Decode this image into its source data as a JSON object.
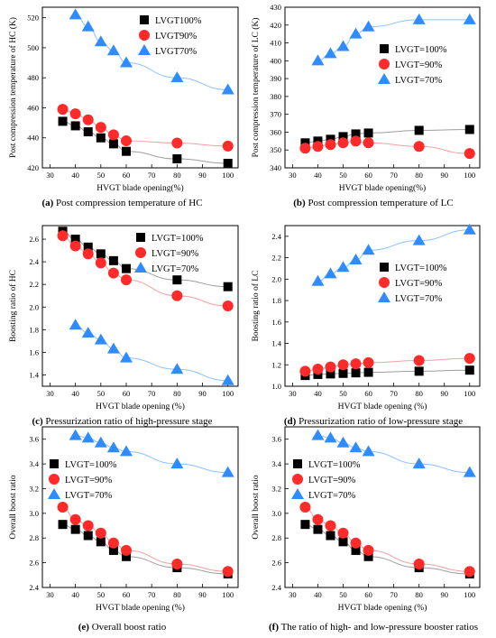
{
  "colors": {
    "LVGT100": "#000000",
    "LVGT90": "#ff2a2a",
    "LVGT70": "#2f8cff",
    "line100": "#9e9e9e",
    "line90": "#f2a2a2",
    "line70": "#8cc2ff"
  },
  "chart_data": [
    {
      "id": "a",
      "type": "scatter",
      "caption_label": "(a)",
      "caption_text": " Post compression temperature of HC",
      "xlabel": "HVGT blade opening(%)",
      "ylabel": "Post compression temperature of HC (K)",
      "xlim": [
        27,
        104
      ],
      "ylim": [
        420,
        527
      ],
      "xticks": [
        30,
        40,
        50,
        60,
        70,
        80,
        90,
        100
      ],
      "yticks": [
        420,
        440,
        460,
        480,
        500,
        520
      ],
      "legend_position": "top-right",
      "series": [
        {
          "name": "LVGT100%",
          "color_key": "LVGT100",
          "line_key": "line100",
          "marker": "square",
          "x": [
            35,
            40,
            45,
            50,
            55,
            60,
            80,
            100
          ],
          "y": [
            451,
            448,
            444,
            440,
            436,
            431,
            426,
            423
          ]
        },
        {
          "name": "LVGT90%",
          "color_key": "LVGT90",
          "line_key": "line90",
          "marker": "circle",
          "x": [
            35,
            40,
            45,
            50,
            55,
            60,
            80,
            100
          ],
          "y": [
            459,
            456,
            452,
            447,
            442,
            438,
            436.5,
            434.5
          ]
        },
        {
          "name": "LVGT70%",
          "color_key": "LVGT70",
          "line_key": "line70",
          "marker": "triangle",
          "x": [
            40,
            45,
            50,
            55,
            60,
            80,
            100
          ],
          "y": [
            522,
            514,
            504,
            498,
            490,
            480,
            472
          ]
        }
      ]
    },
    {
      "id": "b",
      "type": "scatter",
      "caption_label": "(b)",
      "caption_text": " Post compression temperature of LC",
      "xlabel": "HVGT blade opening(%)",
      "ylabel": "Post compression temperature of LC (K)",
      "xlim": [
        27,
        104
      ],
      "ylim": [
        340,
        430
      ],
      "xticks": [
        30,
        40,
        50,
        60,
        70,
        80,
        90,
        100
      ],
      "yticks": [
        340,
        350,
        360,
        370,
        380,
        390,
        400,
        410,
        420,
        430
      ],
      "legend_position": "right",
      "series": [
        {
          "name": "LVGT=100%",
          "color_key": "LVGT100",
          "line_key": "line100",
          "marker": "square",
          "x": [
            35,
            40,
            45,
            50,
            55,
            60,
            80,
            100
          ],
          "y": [
            354,
            355,
            356,
            357.5,
            359,
            359.5,
            361,
            361.5
          ]
        },
        {
          "name": "LVGT=90%",
          "color_key": "LVGT90",
          "line_key": "line90",
          "marker": "circle",
          "x": [
            35,
            40,
            45,
            50,
            55,
            60,
            80,
            100
          ],
          "y": [
            351,
            352,
            353,
            354,
            355,
            354,
            352,
            348
          ]
        },
        {
          "name": "LVGT=70%",
          "color_key": "LVGT70",
          "line_key": "line70",
          "marker": "triangle",
          "x": [
            40,
            45,
            50,
            55,
            60,
            80,
            100
          ],
          "y": [
            400,
            404,
            408,
            415,
            419,
            423,
            423
          ]
        }
      ]
    },
    {
      "id": "c",
      "type": "scatter",
      "caption_label": "(c)",
      "caption_text": " Pressurization ratio of high-pressure stage",
      "xlabel": "HVGT blade opening (%)",
      "ylabel": "Boosting ratio of HC",
      "xlim": [
        27,
        104
      ],
      "ylim": [
        1.3,
        2.72
      ],
      "xticks": [
        30,
        40,
        50,
        60,
        70,
        80,
        90,
        100
      ],
      "yticks": [
        1.4,
        1.6,
        1.8,
        2.0,
        2.2,
        2.4,
        2.6
      ],
      "legend_position": "top-right",
      "series": [
        {
          "name": "LVGT=100%",
          "color_key": "LVGT100",
          "line_key": "line100",
          "marker": "square",
          "x": [
            35,
            40,
            45,
            50,
            55,
            60,
            80,
            100
          ],
          "y": [
            2.67,
            2.6,
            2.53,
            2.47,
            2.41,
            2.34,
            2.24,
            2.18
          ]
        },
        {
          "name": "LVGT=90%",
          "color_key": "LVGT90",
          "line_key": "line90",
          "marker": "circle",
          "x": [
            35,
            40,
            45,
            50,
            55,
            60,
            80,
            100
          ],
          "y": [
            2.63,
            2.54,
            2.47,
            2.39,
            2.3,
            2.24,
            2.1,
            2.01
          ]
        },
        {
          "name": "LVGT=70%",
          "color_key": "LVGT70",
          "line_key": "line70",
          "marker": "triangle",
          "x": [
            40,
            45,
            50,
            55,
            60,
            80,
            100
          ],
          "y": [
            1.84,
            1.77,
            1.71,
            1.63,
            1.55,
            1.45,
            1.35
          ]
        }
      ]
    },
    {
      "id": "d",
      "type": "scatter",
      "caption_label": "(d)",
      "caption_text": " Pressurization ratio of low-pressure stage",
      "xlabel": "HVGT blade opening (%)",
      "ylabel": "Boosting ratio of LC",
      "xlim": [
        27,
        104
      ],
      "ylim": [
        1.0,
        2.5
      ],
      "xticks": [
        30,
        40,
        50,
        60,
        70,
        80,
        90,
        100
      ],
      "yticks": [
        1.0,
        1.2,
        1.4,
        1.6,
        1.8,
        2.0,
        2.2,
        2.4
      ],
      "legend_position": "right",
      "series": [
        {
          "name": "LVGT=100%",
          "color_key": "LVGT100",
          "line_key": "line100",
          "marker": "square",
          "x": [
            35,
            40,
            45,
            50,
            55,
            60,
            80,
            100
          ],
          "y": [
            1.1,
            1.11,
            1.115,
            1.12,
            1.125,
            1.13,
            1.14,
            1.15
          ]
        },
        {
          "name": "LVGT=90%",
          "color_key": "LVGT90",
          "line_key": "line90",
          "marker": "circle",
          "x": [
            35,
            40,
            45,
            50,
            55,
            60,
            80,
            100
          ],
          "y": [
            1.14,
            1.16,
            1.18,
            1.2,
            1.21,
            1.22,
            1.24,
            1.26
          ]
        },
        {
          "name": "LVGT=70%",
          "color_key": "LVGT70",
          "line_key": "line70",
          "marker": "triangle",
          "x": [
            40,
            45,
            50,
            55,
            60,
            80,
            100
          ],
          "y": [
            1.98,
            2.05,
            2.11,
            2.18,
            2.27,
            2.36,
            2.46
          ]
        }
      ]
    },
    {
      "id": "e",
      "type": "scatter",
      "caption_label": "(e)",
      "caption_text": " Overall boost ratio",
      "xlabel": "HVGT blade opening (%)",
      "ylabel": "Overall boost ratio",
      "xlim": [
        27,
        104
      ],
      "ylim": [
        2.4,
        3.7
      ],
      "xticks": [
        30,
        40,
        50,
        60,
        70,
        80,
        90,
        100
      ],
      "yticks": [
        2.4,
        2.6,
        2.8,
        3.0,
        3.2,
        3.4,
        3.6
      ],
      "legend_position": "middle-left",
      "series": [
        {
          "name": "LVGT=100%",
          "color_key": "LVGT100",
          "line_key": "line100",
          "marker": "square",
          "x": [
            35,
            40,
            45,
            50,
            55,
            60,
            80,
            100
          ],
          "y": [
            2.91,
            2.87,
            2.82,
            2.77,
            2.7,
            2.65,
            2.56,
            2.51
          ]
        },
        {
          "name": "LVGT=90%",
          "color_key": "LVGT90",
          "line_key": "line90",
          "marker": "circle",
          "x": [
            35,
            40,
            45,
            50,
            55,
            60,
            80,
            100
          ],
          "y": [
            3.05,
            2.95,
            2.9,
            2.84,
            2.76,
            2.7,
            2.59,
            2.53
          ]
        },
        {
          "name": "LVGT=70%",
          "color_key": "LVGT70",
          "line_key": "line70",
          "marker": "triangle",
          "x": [
            40,
            45,
            50,
            55,
            60,
            80,
            100
          ],
          "y": [
            3.63,
            3.61,
            3.57,
            3.53,
            3.5,
            3.4,
            3.33
          ]
        }
      ]
    },
    {
      "id": "f",
      "type": "scatter",
      "caption_label": "(f)",
      "caption_text": " The ratio of high- and low-pressure booster ratios",
      "xlabel": "HVGT blade opening (%)",
      "ylabel": "Overall boost ratio",
      "xlim": [
        27,
        104
      ],
      "ylim": [
        2.4,
        3.7
      ],
      "xticks": [
        30,
        40,
        50,
        60,
        70,
        80,
        90,
        100
      ],
      "yticks": [
        2.4,
        2.6,
        2.8,
        3.0,
        3.2,
        3.4,
        3.6
      ],
      "legend_position": "middle-left",
      "series": [
        {
          "name": "LVGT=100%",
          "color_key": "LVGT100",
          "line_key": "line100",
          "marker": "square",
          "x": [
            35,
            40,
            45,
            50,
            55,
            60,
            80,
            100
          ],
          "y": [
            2.91,
            2.87,
            2.82,
            2.77,
            2.7,
            2.65,
            2.56,
            2.51
          ]
        },
        {
          "name": "LVGT=90%",
          "color_key": "LVGT90",
          "line_key": "line90",
          "marker": "circle",
          "x": [
            35,
            40,
            45,
            50,
            55,
            60,
            80,
            100
          ],
          "y": [
            3.05,
            2.95,
            2.9,
            2.84,
            2.76,
            2.7,
            2.59,
            2.53
          ]
        },
        {
          "name": "LVGT=70%",
          "color_key": "LVGT70",
          "line_key": "line70",
          "marker": "triangle",
          "x": [
            40,
            45,
            50,
            55,
            60,
            80,
            100
          ],
          "y": [
            3.63,
            3.61,
            3.57,
            3.53,
            3.5,
            3.4,
            3.33
          ]
        }
      ]
    }
  ]
}
